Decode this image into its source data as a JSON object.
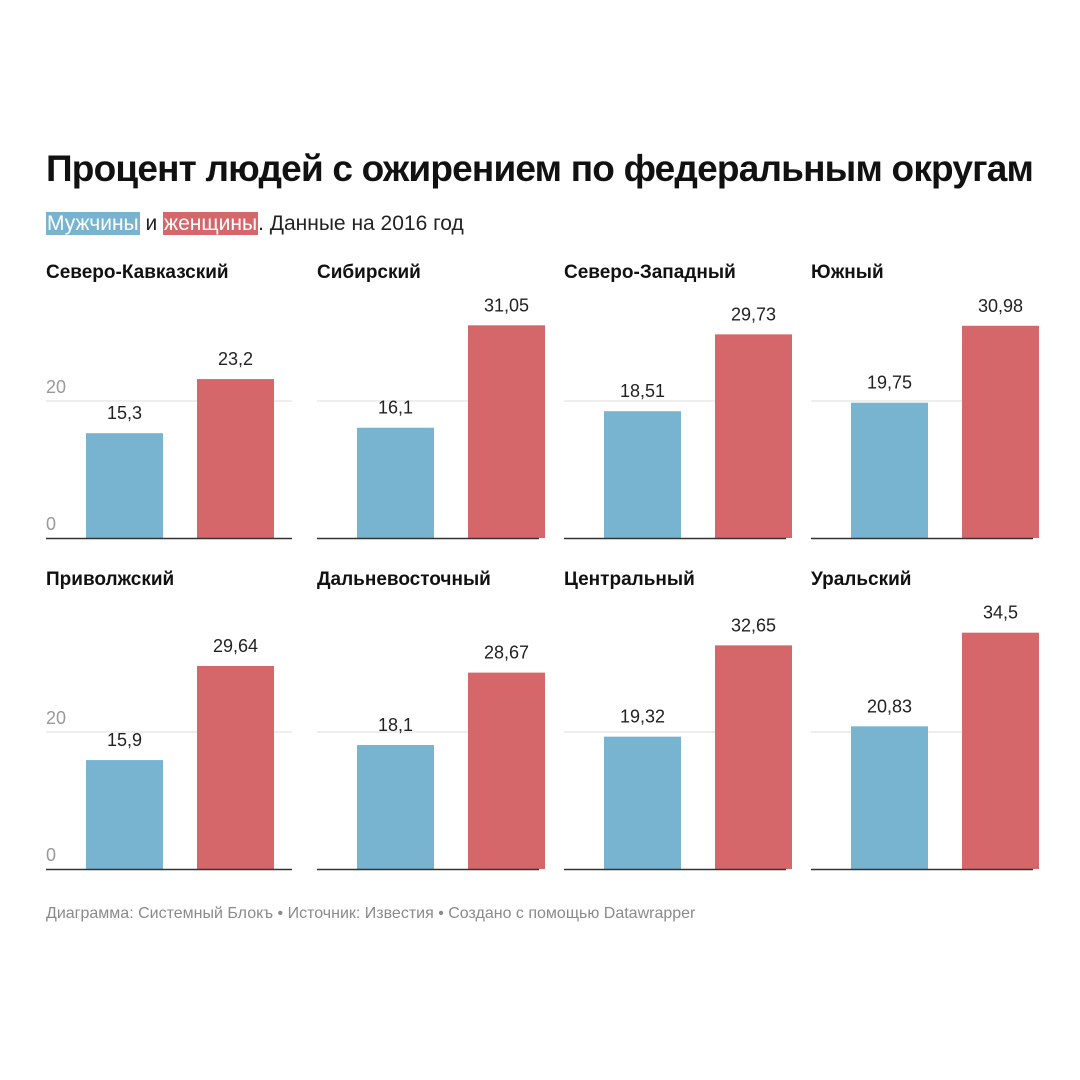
{
  "title": "Процент людей с ожирением по федеральным округам",
  "subtitle": {
    "men": "Мужчины",
    "and": " и ",
    "women": "женщины",
    "rest": ". Данные на 2016 год"
  },
  "colors": {
    "men": "#78b4d0",
    "women": "#d5676b",
    "axis": "#333333",
    "grid": "#dddddd",
    "tick": "#999999"
  },
  "footer": "Диаграмма: Системный Блокъ • Источник: Известия • Создано с помощью Datawrapper",
  "chart_data": {
    "type": "bar",
    "layout": "small-multiples",
    "series_names": [
      "Мужчины",
      "женщины"
    ],
    "yticks": [
      {
        "value": 0,
        "label": "0"
      },
      {
        "value": 20,
        "label": "20"
      }
    ],
    "panels": [
      {
        "title": "Северо-Кавказский",
        "values": [
          15.3,
          23.2
        ],
        "labels": [
          "15,3",
          "23,2"
        ]
      },
      {
        "title": "Сибирский",
        "values": [
          16.1,
          31.05
        ],
        "labels": [
          "16,1",
          "31,05"
        ]
      },
      {
        "title": "Северо-Западный",
        "values": [
          18.51,
          29.73
        ],
        "labels": [
          "18,51",
          "29,73"
        ]
      },
      {
        "title": "Южный",
        "values": [
          19.75,
          30.98
        ],
        "labels": [
          "19,75",
          "30,98"
        ]
      },
      {
        "title": "Приволжский",
        "values": [
          15.9,
          29.64
        ],
        "labels": [
          "15,9",
          "29,64"
        ]
      },
      {
        "title": "Дальневосточный",
        "values": [
          18.1,
          28.67
        ],
        "labels": [
          "18,1",
          "28,67"
        ]
      },
      {
        "title": "Центральный",
        "values": [
          19.32,
          32.65
        ],
        "labels": [
          "19,32",
          "32,65"
        ]
      },
      {
        "title": "Уральский",
        "values": [
          20.83,
          34.5
        ],
        "labels": [
          "20,83",
          "34,5"
        ]
      }
    ]
  }
}
